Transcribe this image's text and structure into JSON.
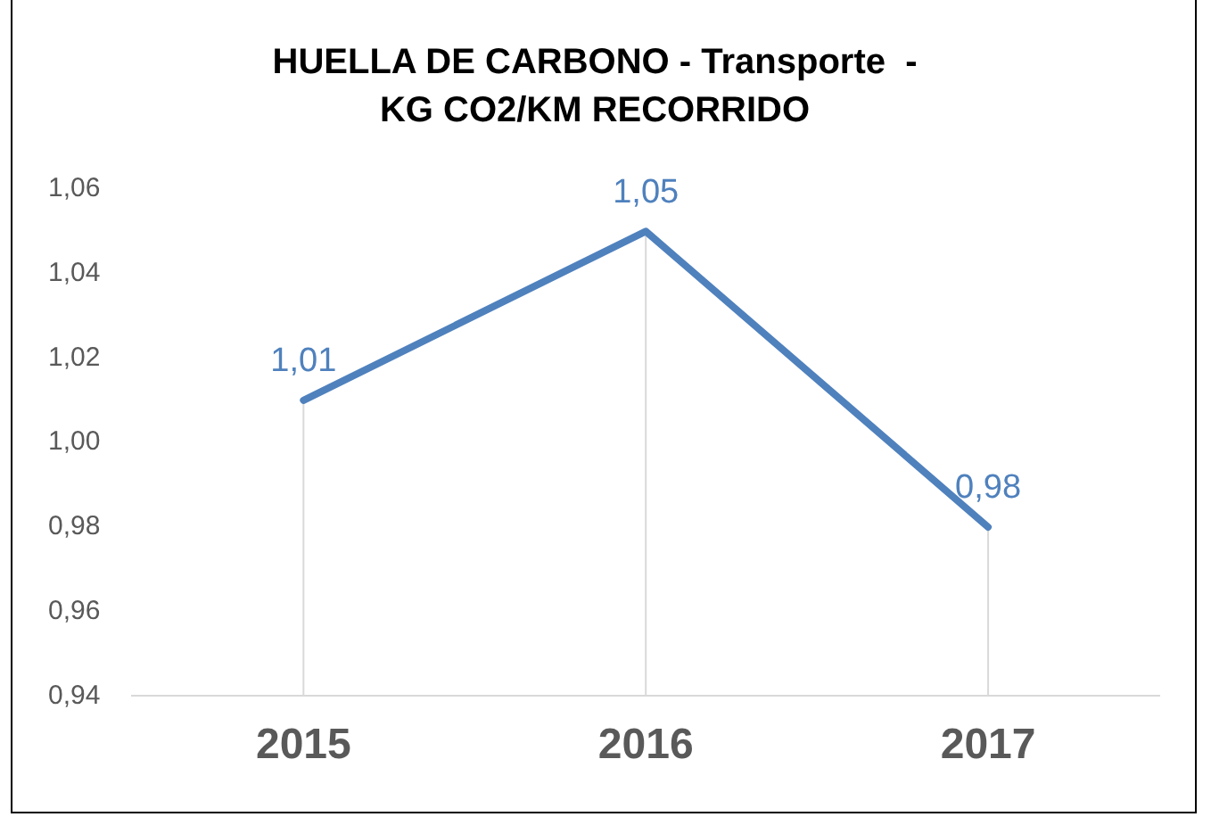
{
  "chart_data": {
    "type": "line",
    "title": "HUELLA DE CARBONO - Transporte  -\nKG CO2/KM RECORRIDO",
    "categories": [
      "2015",
      "2016",
      "2017"
    ],
    "series": [
      {
        "color": "#4f81bd",
        "values": [
          1.01,
          1.05,
          0.98
        ],
        "value_labels": [
          "1,01",
          "1,05",
          "0,98"
        ]
      }
    ],
    "ylim": [
      0.94,
      1.06
    ],
    "yticks": [
      {
        "value": 0.94,
        "label": "0,94"
      },
      {
        "value": 0.96,
        "label": "0,96"
      },
      {
        "value": 0.98,
        "label": "0,98"
      },
      {
        "value": 1.0,
        "label": "1,00"
      },
      {
        "value": 1.02,
        "label": "1,02"
      },
      {
        "value": 1.04,
        "label": "1,04"
      },
      {
        "value": 1.06,
        "label": "1,06"
      }
    ],
    "grid": "x",
    "legend": false,
    "marker": "none",
    "line_style": "solid"
  }
}
